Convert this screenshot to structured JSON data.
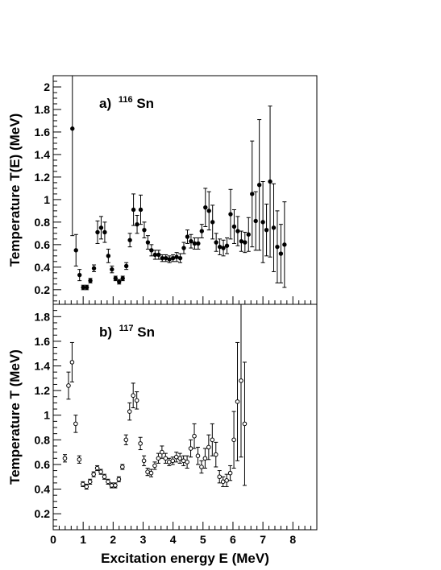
{
  "chart_data": [
    {
      "type": "scatter",
      "panel": "a",
      "title_prefix": "a)",
      "title_mass": "116",
      "title_element": "Sn",
      "ylabel": "Temperature T(E) (MeV)",
      "xlabel": "",
      "xlim": [
        0,
        8.8
      ],
      "ylim": [
        0.07,
        2.1
      ],
      "yticks": [
        0.2,
        0.4,
        0.6,
        0.8,
        1,
        1.2,
        1.4,
        1.6,
        1.8,
        2
      ],
      "ytick_labels": [
        "0.2",
        "0.4",
        "0.6",
        "0.8",
        "1",
        "1.2",
        "1.4",
        "1.6",
        "1.8",
        "2"
      ],
      "marker": "filled",
      "grid": false,
      "x": [
        0.64,
        0.76,
        0.88,
        1.0,
        1.12,
        1.24,
        1.36,
        1.48,
        1.6,
        1.72,
        1.84,
        1.96,
        2.08,
        2.2,
        2.32,
        2.44,
        2.56,
        2.68,
        2.8,
        2.92,
        3.04,
        3.16,
        3.28,
        3.4,
        3.52,
        3.64,
        3.76,
        3.88,
        4.0,
        4.12,
        4.24,
        4.36,
        4.48,
        4.6,
        4.72,
        4.84,
        4.96,
        5.08,
        5.2,
        5.32,
        5.44,
        5.56,
        5.68,
        5.8,
        5.92,
        6.04,
        6.16,
        6.28,
        6.4,
        6.52,
        6.64,
        6.76,
        6.88,
        7.0,
        7.12,
        7.24,
        7.36,
        7.48,
        7.6,
        7.72
      ],
      "y": [
        1.63,
        0.55,
        0.33,
        0.22,
        0.22,
        0.28,
        0.39,
        0.71,
        0.75,
        0.71,
        0.5,
        0.38,
        0.3,
        0.27,
        0.3,
        0.41,
        0.64,
        0.91,
        0.78,
        0.91,
        0.73,
        0.62,
        0.55,
        0.51,
        0.51,
        0.48,
        0.48,
        0.47,
        0.48,
        0.49,
        0.48,
        0.57,
        0.67,
        0.63,
        0.61,
        0.61,
        0.72,
        0.93,
        0.9,
        0.8,
        0.62,
        0.58,
        0.57,
        0.59,
        0.87,
        0.76,
        0.72,
        0.63,
        0.62,
        0.69,
        1.05,
        0.81,
        1.13,
        0.8,
        0.73,
        1.16,
        0.75,
        0.58,
        0.52,
        0.6
      ],
      "yerr": [
        0.0,
        0.14,
        0.05,
        0.02,
        0.02,
        0.02,
        0.03,
        0.1,
        0.1,
        0.09,
        0.06,
        0.03,
        0.02,
        0.02,
        0.02,
        0.03,
        0.06,
        0.14,
        0.08,
        0.13,
        0.07,
        0.06,
        0.05,
        0.04,
        0.04,
        0.03,
        0.03,
        0.03,
        0.03,
        0.04,
        0.04,
        0.05,
        0.06,
        0.06,
        0.05,
        0.05,
        0.06,
        0.17,
        0.17,
        0.15,
        0.08,
        0.07,
        0.07,
        0.07,
        0.22,
        0.15,
        0.13,
        0.09,
        0.09,
        0.15,
        0.47,
        0.26,
        0.58,
        0.36,
        0.23,
        0.67,
        0.39,
        0.32,
        0.26,
        0.38
      ],
      "yerr_high_first_point": 2.1
    },
    {
      "type": "scatter",
      "panel": "b",
      "title_prefix": "b)",
      "title_mass": "117",
      "title_element": "Sn",
      "ylabel": "Temperature T (MeV)",
      "xlabel": "Excitation energy E (MeV)",
      "xlim": [
        0,
        8.8
      ],
      "ylim": [
        0.07,
        1.9
      ],
      "yticks": [
        0.2,
        0.4,
        0.6,
        0.8,
        1,
        1.2,
        1.4,
        1.6,
        1.8
      ],
      "ytick_labels": [
        "0.2",
        "0.4",
        "0.6",
        "0.8",
        "1",
        "1.2",
        "1.4",
        "1.6",
        "1.8"
      ],
      "xticks": [
        0,
        1,
        2,
        3,
        4,
        5,
        6,
        7,
        8
      ],
      "xtick_labels": [
        "0",
        "1",
        "2",
        "3",
        "4",
        "5",
        "6",
        "7",
        "8"
      ],
      "marker": "open",
      "grid": false,
      "x": [
        0.39,
        0.51,
        0.63,
        0.75,
        0.87,
        0.99,
        1.11,
        1.23,
        1.35,
        1.47,
        1.59,
        1.71,
        1.83,
        1.95,
        2.07,
        2.19,
        2.31,
        2.43,
        2.55,
        2.67,
        2.79,
        2.91,
        3.03,
        3.15,
        3.27,
        3.39,
        3.51,
        3.63,
        3.75,
        3.87,
        3.99,
        4.11,
        4.23,
        4.35,
        4.47,
        4.59,
        4.71,
        4.83,
        4.95,
        5.07,
        5.19,
        5.31,
        5.43,
        5.55,
        5.67,
        5.79,
        5.91,
        6.03,
        6.15,
        6.27,
        6.39
      ],
      "y": [
        0.65,
        1.24,
        1.43,
        0.93,
        0.64,
        0.44,
        0.42,
        0.46,
        0.52,
        0.57,
        0.54,
        0.5,
        0.46,
        0.43,
        0.43,
        0.48,
        0.58,
        0.8,
        1.03,
        1.16,
        1.12,
        0.77,
        0.63,
        0.54,
        0.53,
        0.59,
        0.65,
        0.7,
        0.65,
        0.62,
        0.63,
        0.66,
        0.65,
        0.63,
        0.62,
        0.73,
        0.83,
        0.67,
        0.58,
        0.65,
        0.74,
        0.8,
        0.68,
        0.5,
        0.46,
        0.47,
        0.53,
        0.8,
        1.11,
        1.28,
        0.93
      ],
      "yerr": [
        0.03,
        0.11,
        0.16,
        0.07,
        0.03,
        0.02,
        0.02,
        0.02,
        0.02,
        0.02,
        0.02,
        0.02,
        0.02,
        0.02,
        0.02,
        0.02,
        0.02,
        0.04,
        0.07,
        0.1,
        0.07,
        0.05,
        0.04,
        0.03,
        0.03,
        0.03,
        0.04,
        0.05,
        0.04,
        0.03,
        0.03,
        0.04,
        0.04,
        0.04,
        0.05,
        0.07,
        0.1,
        0.07,
        0.05,
        0.08,
        0.1,
        0.13,
        0.1,
        0.05,
        0.04,
        0.05,
        0.06,
        0.23,
        0.48,
        0.62,
        0.5
      ],
      "yerr_high_point_index": 49,
      "yerr_high_value": 1.9
    }
  ]
}
